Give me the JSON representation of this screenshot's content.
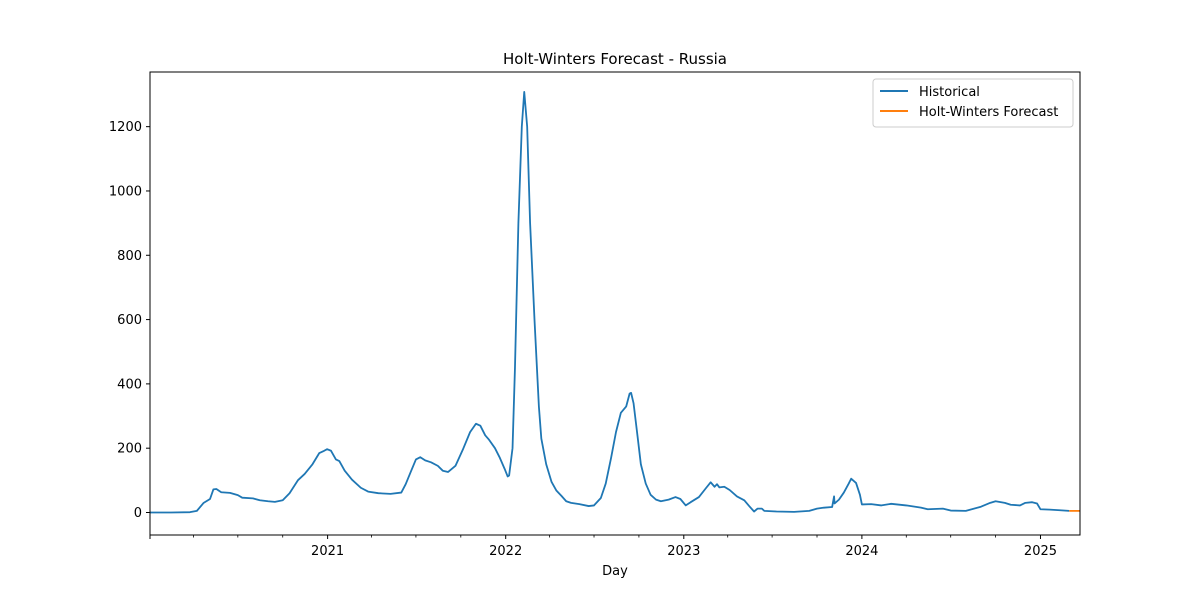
{
  "chart_data": {
    "type": "line",
    "title": "Holt-Winters Forecast - Russia",
    "xlabel": "Day",
    "ylabel": "",
    "x_type": "date",
    "xlim": [
      "2020-01-03",
      "2025-03-23"
    ],
    "ylim": [
      -70,
      1370
    ],
    "yticks": [
      0,
      200,
      400,
      600,
      800,
      1000,
      1200
    ],
    "xticks": [
      {
        "date": "2021-01-01",
        "label": "2021"
      },
      {
        "date": "2022-01-01",
        "label": "2022"
      },
      {
        "date": "2023-01-01",
        "label": "2023"
      },
      {
        "date": "2024-01-01",
        "label": "2024"
      },
      {
        "date": "2025-01-01",
        "label": "2025"
      }
    ],
    "grid": false,
    "legend": {
      "placement": "upper right"
    },
    "series": [
      {
        "name": "Historical",
        "color": "#1f77b4",
        "points": [
          [
            "2020-01-03",
            0
          ],
          [
            "2020-02-15",
            0
          ],
          [
            "2020-03-25",
            1
          ],
          [
            "2020-04-08",
            5
          ],
          [
            "2020-04-22",
            30
          ],
          [
            "2020-05-05",
            42
          ],
          [
            "2020-05-12",
            72
          ],
          [
            "2020-05-18",
            73
          ],
          [
            "2020-05-28",
            63
          ],
          [
            "2020-06-15",
            61
          ],
          [
            "2020-07-01",
            54
          ],
          [
            "2020-07-10",
            46
          ],
          [
            "2020-08-01",
            44
          ],
          [
            "2020-08-15",
            38
          ],
          [
            "2020-09-01",
            35
          ],
          [
            "2020-09-15",
            33
          ],
          [
            "2020-10-01",
            38
          ],
          [
            "2020-10-15",
            60
          ],
          [
            "2020-11-01",
            100
          ],
          [
            "2020-11-15",
            120
          ],
          [
            "2020-12-01",
            150
          ],
          [
            "2020-12-15",
            185
          ],
          [
            "2020-12-25",
            192
          ],
          [
            "2020-12-31",
            197
          ],
          [
            "2021-01-08",
            192
          ],
          [
            "2021-01-18",
            165
          ],
          [
            "2021-01-25",
            160
          ],
          [
            "2021-02-05",
            130
          ],
          [
            "2021-02-20",
            102
          ],
          [
            "2021-03-10",
            77
          ],
          [
            "2021-03-25",
            65
          ],
          [
            "2021-04-15",
            60
          ],
          [
            "2021-05-10",
            58
          ],
          [
            "2021-06-01",
            62
          ],
          [
            "2021-06-10",
            88
          ],
          [
            "2021-06-20",
            125
          ],
          [
            "2021-07-01",
            165
          ],
          [
            "2021-07-10",
            172
          ],
          [
            "2021-07-20",
            162
          ],
          [
            "2021-08-01",
            156
          ],
          [
            "2021-08-15",
            145
          ],
          [
            "2021-08-25",
            130
          ],
          [
            "2021-09-05",
            126
          ],
          [
            "2021-09-20",
            145
          ],
          [
            "2021-10-05",
            195
          ],
          [
            "2021-10-20",
            250
          ],
          [
            "2021-11-01",
            276
          ],
          [
            "2021-11-10",
            270
          ],
          [
            "2021-11-20",
            240
          ],
          [
            "2021-11-28",
            226
          ],
          [
            "2021-12-10",
            200
          ],
          [
            "2021-12-20",
            170
          ],
          [
            "2021-12-30",
            135
          ],
          [
            "2022-01-05",
            112
          ],
          [
            "2022-01-08",
            115
          ],
          [
            "2022-01-15",
            200
          ],
          [
            "2022-01-20",
            450
          ],
          [
            "2022-01-27",
            900
          ],
          [
            "2022-02-03",
            1200
          ],
          [
            "2022-02-08",
            1308
          ],
          [
            "2022-02-14",
            1200
          ],
          [
            "2022-02-20",
            900
          ],
          [
            "2022-03-01",
            600
          ],
          [
            "2022-03-10",
            330
          ],
          [
            "2022-03-15",
            230
          ],
          [
            "2022-03-25",
            150
          ],
          [
            "2022-04-05",
            95
          ],
          [
            "2022-04-15",
            68
          ],
          [
            "2022-04-25",
            52
          ],
          [
            "2022-05-05",
            35
          ],
          [
            "2022-05-15",
            30
          ],
          [
            "2022-06-01",
            26
          ],
          [
            "2022-06-20",
            20
          ],
          [
            "2022-07-01",
            22
          ],
          [
            "2022-07-15",
            45
          ],
          [
            "2022-07-25",
            90
          ],
          [
            "2022-08-05",
            170
          ],
          [
            "2022-08-15",
            250
          ],
          [
            "2022-08-25",
            310
          ],
          [
            "2022-09-05",
            330
          ],
          [
            "2022-09-12",
            370
          ],
          [
            "2022-09-15",
            372
          ],
          [
            "2022-09-20",
            340
          ],
          [
            "2022-09-28",
            240
          ],
          [
            "2022-10-05",
            150
          ],
          [
            "2022-10-15",
            90
          ],
          [
            "2022-10-25",
            55
          ],
          [
            "2022-11-05",
            40
          ],
          [
            "2022-11-15",
            35
          ],
          [
            "2022-12-01",
            40
          ],
          [
            "2022-12-15",
            48
          ],
          [
            "2022-12-25",
            42
          ],
          [
            "2023-01-05",
            22
          ],
          [
            "2023-01-15",
            32
          ],
          [
            "2023-02-01",
            48
          ],
          [
            "2023-02-15",
            75
          ],
          [
            "2023-02-25",
            94
          ],
          [
            "2023-03-05",
            80
          ],
          [
            "2023-03-10",
            88
          ],
          [
            "2023-03-15",
            78
          ],
          [
            "2023-03-25",
            80
          ],
          [
            "2023-04-05",
            70
          ],
          [
            "2023-04-20",
            50
          ],
          [
            "2023-05-05",
            38
          ],
          [
            "2023-05-15",
            20
          ],
          [
            "2023-05-25",
            3
          ],
          [
            "2023-06-01",
            12
          ],
          [
            "2023-06-10",
            12
          ],
          [
            "2023-06-15",
            5
          ],
          [
            "2023-07-10",
            3
          ],
          [
            "2023-08-15",
            2
          ],
          [
            "2023-09-15",
            5
          ],
          [
            "2023-10-01",
            12
          ],
          [
            "2023-10-15",
            15
          ],
          [
            "2023-11-01",
            17
          ],
          [
            "2023-11-05",
            50
          ],
          [
            "2023-11-06",
            28
          ],
          [
            "2023-11-15",
            40
          ],
          [
            "2023-11-25",
            62
          ],
          [
            "2023-12-05",
            90
          ],
          [
            "2023-12-10",
            105
          ],
          [
            "2023-12-20",
            92
          ],
          [
            "2023-12-28",
            55
          ],
          [
            "2024-01-01",
            25
          ],
          [
            "2024-01-20",
            26
          ],
          [
            "2024-02-10",
            22
          ],
          [
            "2024-03-01",
            27
          ],
          [
            "2024-04-01",
            22
          ],
          [
            "2024-05-01",
            15
          ],
          [
            "2024-05-15",
            10
          ],
          [
            "2024-06-15",
            12
          ],
          [
            "2024-07-01",
            6
          ],
          [
            "2024-08-01",
            5
          ],
          [
            "2024-09-01",
            18
          ],
          [
            "2024-09-20",
            30
          ],
          [
            "2024-10-01",
            35
          ],
          [
            "2024-10-20",
            30
          ],
          [
            "2024-11-01",
            24
          ],
          [
            "2024-11-20",
            22
          ],
          [
            "2024-12-01",
            30
          ],
          [
            "2024-12-15",
            32
          ],
          [
            "2024-12-25",
            28
          ],
          [
            "2025-01-01",
            10
          ],
          [
            "2025-01-20",
            9
          ],
          [
            "2025-02-10",
            7
          ],
          [
            "2025-03-01",
            5
          ]
        ]
      },
      {
        "name": "Holt-Winters Forecast",
        "color": "#ff7f0e",
        "points": [
          [
            "2025-03-01",
            5
          ],
          [
            "2025-03-23",
            5
          ]
        ]
      }
    ]
  }
}
